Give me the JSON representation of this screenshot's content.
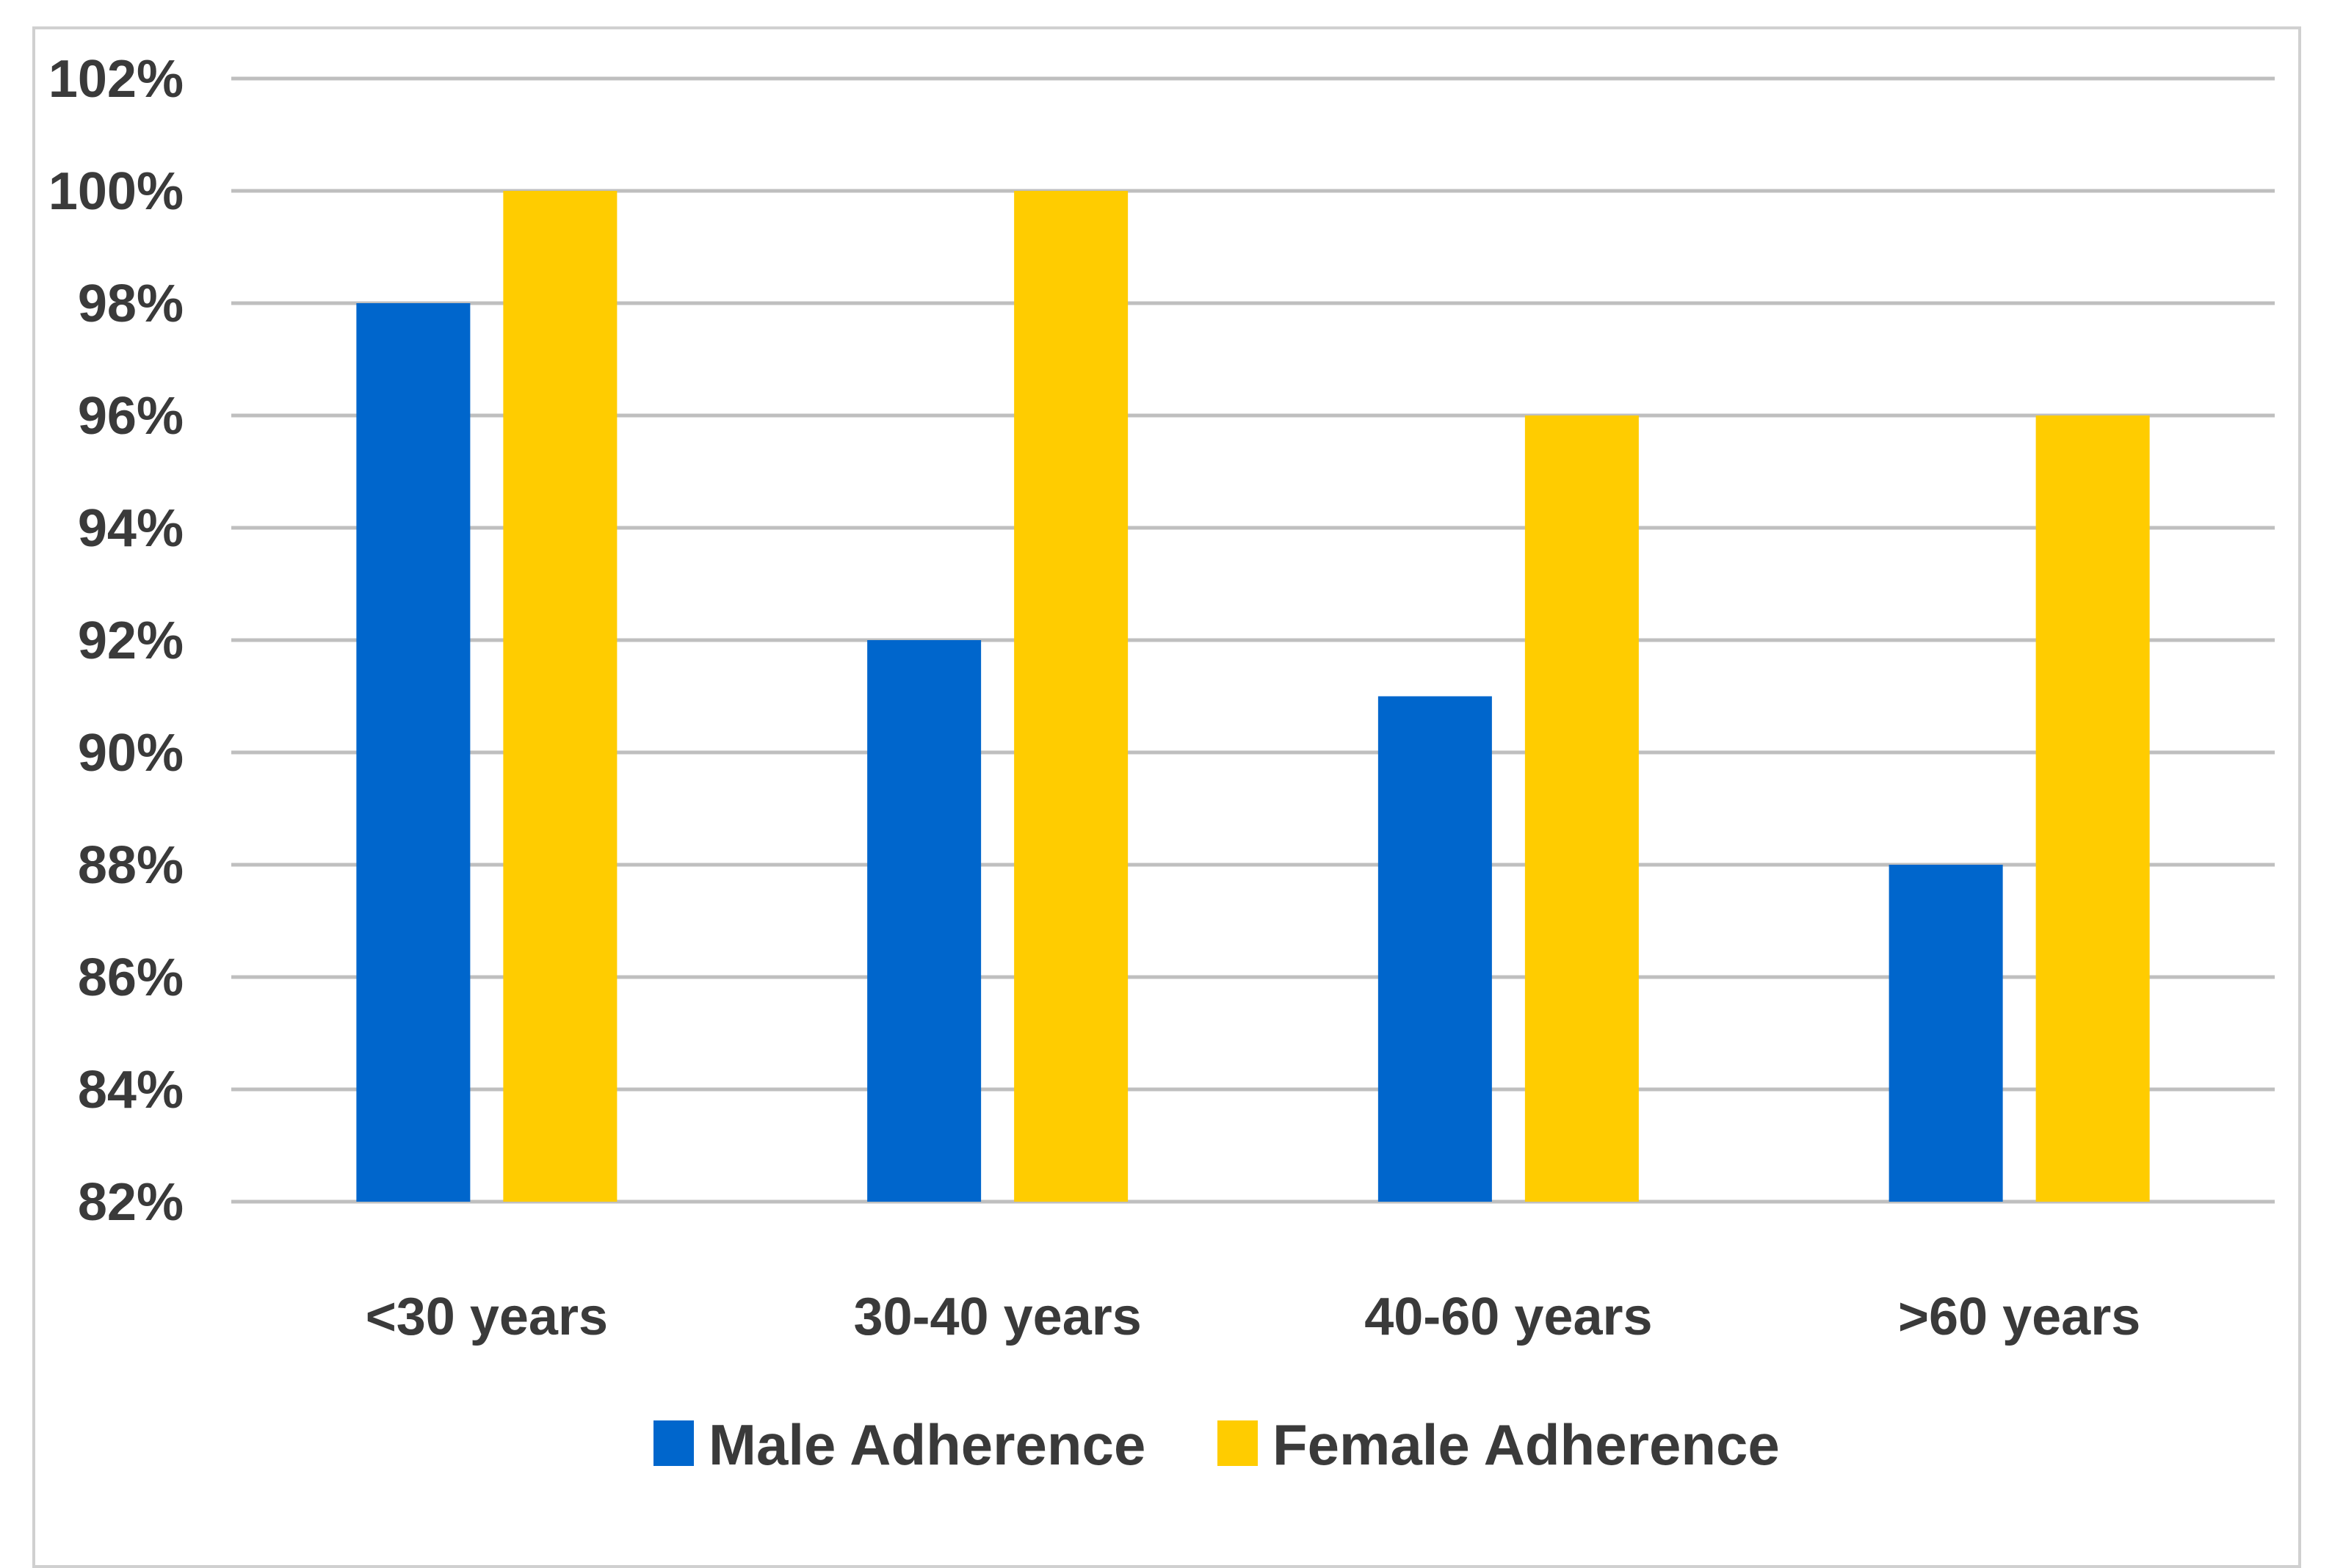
{
  "chart_data": {
    "type": "bar",
    "categories": [
      "<30 years",
      "30-40 years",
      "40-60 years",
      ">60 years"
    ],
    "series": [
      {
        "name": "Male Adherence",
        "values": [
          98,
          92,
          91,
          88
        ],
        "color": "#0066cc"
      },
      {
        "name": "Female Adherence",
        "values": [
          100,
          100,
          96,
          96
        ],
        "color": "#ffcc00"
      }
    ],
    "y_ticks": [
      "82%",
      "84%",
      "86%",
      "88%",
      "90%",
      "92%",
      "94%",
      "96%",
      "98%",
      "100%",
      "102%"
    ],
    "ylim": [
      82,
      102
    ],
    "y_unit": "%",
    "grid": true,
    "gridline_color": "#bfbfbf",
    "legend_position": "bottom",
    "title": "",
    "xlabel": "",
    "ylabel": ""
  }
}
